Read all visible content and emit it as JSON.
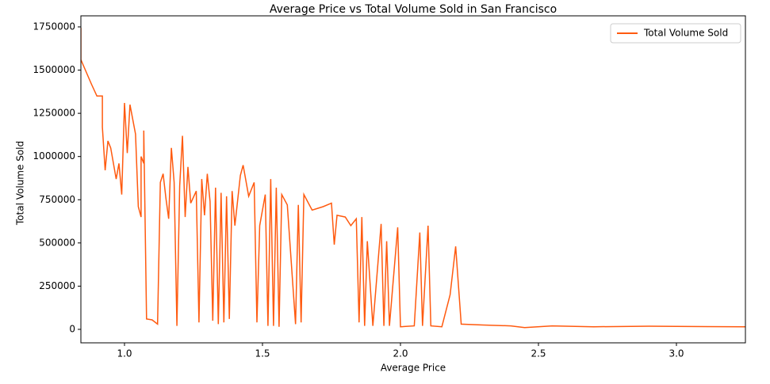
{
  "chart_data": {
    "type": "line",
    "title": "Average Price vs Total Volume Sold in San Francisco",
    "x_label": "Average Price",
    "y_label": "Total Volume Sold",
    "legend": "upper right",
    "xlim": [
      0.842,
      3.25
    ],
    "ylim": [
      -78000,
      1814000
    ],
    "xticks": [
      {
        "value": 1,
        "label": "1.0"
      },
      1.5,
      {
        "value": 2,
        "label": "2.0"
      },
      2.5,
      {
        "value": 3,
        "label": "3.0"
      }
    ],
    "yticks": [
      0,
      250000,
      500000,
      750000,
      1000000,
      1250000,
      1500000,
      1750000
    ],
    "series": [
      {
        "name": "Total Volume Sold",
        "color": "#ff5a0f",
        "x": [
          0.842,
          0.842,
          0.88,
          0.9,
          0.92,
          0.92,
          0.93,
          0.94,
          0.95,
          0.97,
          0.98,
          0.99,
          1.0,
          1.01,
          1.02,
          1.04,
          1.05,
          1.06,
          1.06,
          1.07,
          1.07,
          1.08,
          1.1,
          1.12,
          1.13,
          1.14,
          1.15,
          1.16,
          1.17,
          1.18,
          1.19,
          1.2,
          1.21,
          1.22,
          1.23,
          1.24,
          1.26,
          1.27,
          1.28,
          1.29,
          1.3,
          1.31,
          1.32,
          1.33,
          1.34,
          1.35,
          1.36,
          1.37,
          1.38,
          1.39,
          1.4,
          1.42,
          1.43,
          1.45,
          1.47,
          1.48,
          1.49,
          1.51,
          1.52,
          1.53,
          1.54,
          1.55,
          1.56,
          1.57,
          1.59,
          1.62,
          1.63,
          1.64,
          1.65,
          1.68,
          1.72,
          1.75,
          1.76,
          1.77,
          1.8,
          1.82,
          1.84,
          1.85,
          1.86,
          1.87,
          1.88,
          1.9,
          1.93,
          1.94,
          1.95,
          1.96,
          1.99,
          2.0,
          2.05,
          2.07,
          2.08,
          2.1,
          2.11,
          2.15,
          2.18,
          2.2,
          2.22,
          2.3,
          2.4,
          2.45,
          2.55,
          2.7,
          2.9,
          3.0,
          3.25
        ],
        "values": [
          1745000,
          1560000,
          1420000,
          1350000,
          1350000,
          1170000,
          920000,
          1090000,
          1050000,
          870000,
          960000,
          780000,
          1310000,
          1020000,
          1300000,
          1130000,
          710000,
          650000,
          1000000,
          960000,
          1150000,
          60000,
          55000,
          30000,
          850000,
          900000,
          760000,
          640000,
          1050000,
          850000,
          20000,
          830000,
          1120000,
          650000,
          940000,
          730000,
          800000,
          40000,
          870000,
          660000,
          900000,
          740000,
          50000,
          820000,
          30000,
          790000,
          40000,
          770000,
          60000,
          800000,
          600000,
          890000,
          950000,
          770000,
          850000,
          40000,
          600000,
          780000,
          20000,
          870000,
          20000,
          820000,
          15000,
          780000,
          720000,
          30000,
          720000,
          40000,
          780000,
          690000,
          710000,
          730000,
          490000,
          660000,
          650000,
          600000,
          640000,
          40000,
          650000,
          20000,
          510000,
          20000,
          610000,
          20000,
          510000,
          20000,
          590000,
          15000,
          20000,
          560000,
          20000,
          600000,
          20000,
          15000,
          200000,
          480000,
          30000,
          25000,
          20000,
          10000,
          20000,
          15000,
          18000,
          17000,
          15000
        ]
      }
    ]
  }
}
